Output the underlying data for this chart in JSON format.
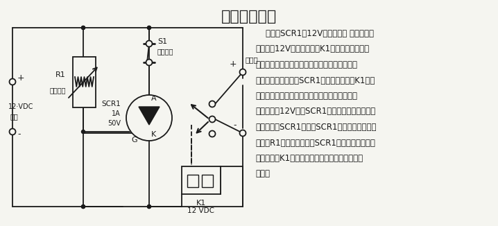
{
  "title": "过压保护电路",
  "title_fontsize": 16,
  "bg_color": "#f5f5f0",
  "circuit_color": "#1a1a1a",
  "text_color": "#1a1a1a",
  "desc_lines": [
    "    可控硅SCR1与12V的电源线路 并联安装，",
    "并连接到12V的常闭继电器K1。可控硅的控制极",
    "电路用来对电源电压进行取样。只要所加电源电",
    "压低于某一给定值，SCR1保持截止状态，K1的触",
    "点保持闭合状态，从而给负载供电。当电源电压",
    "上升到高于12V时，SCR1的控制极就被加上足够",
    "大的电流使SCR1通导。SCR1的触发电平取决于",
    "电位器R1的调定值。一旦SCR1被触发导通（驱动",
    "继电器），K1的触点断开，从而切断流过负载的",
    "电流。"
  ],
  "desc_fontsize": 8.5,
  "label_fontsize": 7.5
}
